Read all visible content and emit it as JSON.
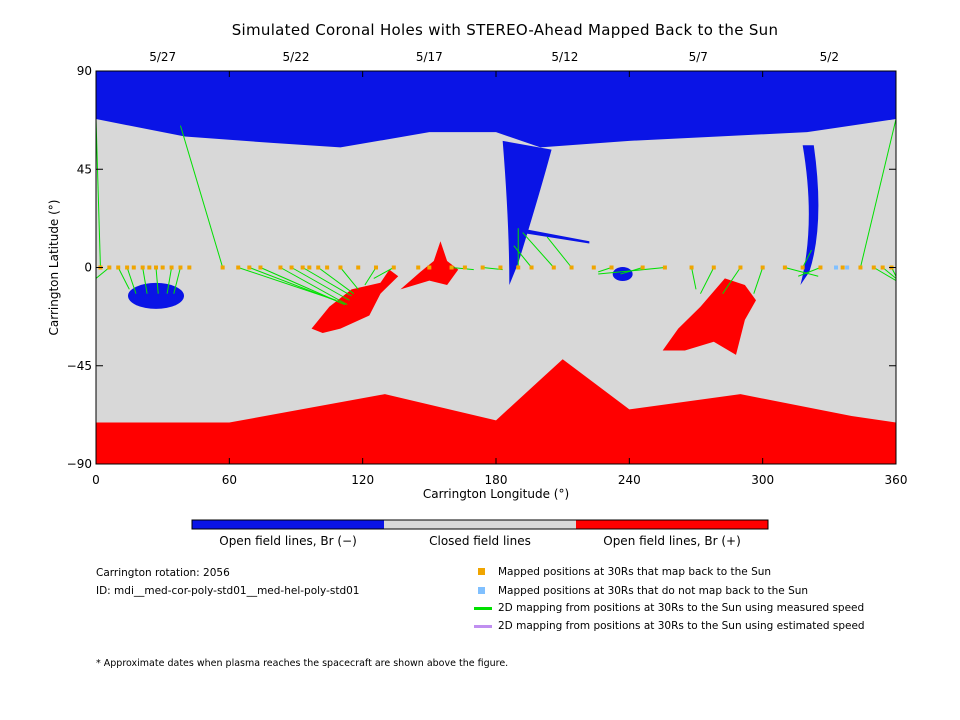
{
  "chart_data": {
    "type": "map",
    "title": "Simulated Coronal Holes with STEREO-Ahead Mapped Back to the Sun",
    "xlabel": "Carrington Longitude (°)",
    "ylabel": "Carrington Latitude (°)",
    "xlim": [
      0,
      360
    ],
    "ylim": [
      -90,
      90
    ],
    "xticks": [
      0,
      60,
      120,
      180,
      240,
      300,
      360
    ],
    "yticks": [
      -90,
      -45,
      0,
      45,
      90
    ],
    "top_dates": [
      {
        "label": "5/27",
        "lon": 30
      },
      {
        "label": "5/22",
        "lon": 90
      },
      {
        "label": "5/17",
        "lon": 150
      },
      {
        "label": "5/12",
        "lon": 211
      },
      {
        "label": "5/7",
        "lon": 271
      },
      {
        "label": "5/2",
        "lon": 330
      }
    ],
    "colors": {
      "open_negative": "#0a14e6",
      "closed": "#d8d8d8",
      "open_positive": "#ff0000",
      "mapped": "#f0a500",
      "unmapped": "#80c0ff",
      "measured": "#00e000",
      "estimated": "#c08ff0"
    },
    "colorbar": [
      "Open field lines, Br (−)",
      "Closed field lines",
      "Open field lines, Br (+)"
    ],
    "regions": {
      "north_polar_negative": {
        "boundary_lat": [
          [
            0,
            68
          ],
          [
            40,
            60
          ],
          [
            80,
            57
          ],
          [
            110,
            55
          ],
          [
            150,
            62
          ],
          [
            180,
            62
          ],
          [
            200,
            55
          ],
          [
            240,
            58
          ],
          [
            280,
            60
          ],
          [
            320,
            62
          ],
          [
            360,
            68
          ]
        ]
      },
      "south_polar_positive": {
        "boundary_lat": [
          [
            0,
            -71
          ],
          [
            60,
            -71
          ],
          [
            130,
            -58
          ],
          [
            180,
            -70
          ],
          [
            210,
            -42
          ],
          [
            240,
            -65
          ],
          [
            290,
            -58
          ],
          [
            340,
            -68
          ],
          [
            360,
            -71
          ]
        ]
      },
      "negative_holes": [
        {
          "lon": 25,
          "lat": -13
        },
        {
          "lon": 186,
          "lat": 50
        },
        {
          "lon": 237,
          "lat": -3
        },
        {
          "lon": 310,
          "lat": 47
        }
      ],
      "positive_holes": [
        {
          "lon": 120,
          "lat": -18
        },
        {
          "lon": 155,
          "lat": 0
        },
        {
          "lon": 288,
          "lat": -20
        }
      ]
    },
    "mapped_points": [
      {
        "lon": 2,
        "lat": 0
      },
      {
        "lon": 6,
        "lat": 0
      },
      {
        "lon": 10,
        "lat": 0
      },
      {
        "lon": 14,
        "lat": 0
      },
      {
        "lon": 17,
        "lat": 0
      },
      {
        "lon": 21,
        "lat": 0
      },
      {
        "lon": 24,
        "lat": 0
      },
      {
        "lon": 27,
        "lat": 0
      },
      {
        "lon": 30,
        "lat": 0
      },
      {
        "lon": 34,
        "lat": 0
      },
      {
        "lon": 38,
        "lat": 0
      },
      {
        "lon": 42,
        "lat": 0
      },
      {
        "lon": 57,
        "lat": 0
      },
      {
        "lon": 64,
        "lat": 0
      },
      {
        "lon": 69,
        "lat": 0
      },
      {
        "lon": 74,
        "lat": 0
      },
      {
        "lon": 83,
        "lat": 0
      },
      {
        "lon": 88,
        "lat": 0
      },
      {
        "lon": 93,
        "lat": 0
      },
      {
        "lon": 96,
        "lat": 0
      },
      {
        "lon": 100,
        "lat": 0
      },
      {
        "lon": 104,
        "lat": 0
      },
      {
        "lon": 110,
        "lat": 0
      },
      {
        "lon": 118,
        "lat": 0
      },
      {
        "lon": 126,
        "lat": 0
      },
      {
        "lon": 134,
        "lat": 0
      },
      {
        "lon": 145,
        "lat": 0
      },
      {
        "lon": 150,
        "lat": 0
      },
      {
        "lon": 160,
        "lat": 0
      },
      {
        "lon": 166,
        "lat": 0
      },
      {
        "lon": 174,
        "lat": 0
      },
      {
        "lon": 182,
        "lat": 0
      },
      {
        "lon": 190,
        "lat": 0
      },
      {
        "lon": 196,
        "lat": 0
      },
      {
        "lon": 206,
        "lat": 0
      },
      {
        "lon": 214,
        "lat": 0
      },
      {
        "lon": 224,
        "lat": 0
      },
      {
        "lon": 232,
        "lat": 0
      },
      {
        "lon": 246,
        "lat": 0
      },
      {
        "lon": 256,
        "lat": 0
      },
      {
        "lon": 268,
        "lat": 0
      },
      {
        "lon": 278,
        "lat": 0
      },
      {
        "lon": 290,
        "lat": 0
      },
      {
        "lon": 300,
        "lat": 0
      },
      {
        "lon": 310,
        "lat": 0
      },
      {
        "lon": 318,
        "lat": 0
      },
      {
        "lon": 326,
        "lat": 0
      },
      {
        "lon": 336,
        "lat": 0
      },
      {
        "lon": 344,
        "lat": 0
      },
      {
        "lon": 350,
        "lat": 0
      },
      {
        "lon": 354,
        "lat": 0
      },
      {
        "lon": 358,
        "lat": 0
      }
    ],
    "unmapped_points": [
      {
        "lon": 333,
        "lat": 0
      },
      {
        "lon": 338,
        "lat": 0
      }
    ],
    "mapping_lines": [
      {
        "from": [
          2,
          0
        ],
        "to": [
          0,
          68
        ]
      },
      {
        "from": [
          6,
          0
        ],
        "to": [
          0,
          -5
        ]
      },
      {
        "from": [
          10,
          0
        ],
        "to": [
          15,
          -10
        ]
      },
      {
        "from": [
          14,
          0
        ],
        "to": [
          18,
          -12
        ]
      },
      {
        "from": [
          21,
          0
        ],
        "to": [
          23,
          -12
        ]
      },
      {
        "from": [
          27,
          0
        ],
        "to": [
          28,
          -12
        ]
      },
      {
        "from": [
          34,
          0
        ],
        "to": [
          32,
          -12
        ]
      },
      {
        "from": [
          38,
          0
        ],
        "to": [
          35,
          -12
        ]
      },
      {
        "from": [
          57,
          0
        ],
        "to": [
          38,
          65
        ]
      },
      {
        "from": [
          64,
          0
        ],
        "to": [
          108,
          -15
        ]
      },
      {
        "from": [
          69,
          0
        ],
        "to": [
          110,
          -16
        ]
      },
      {
        "from": [
          74,
          0
        ],
        "to": [
          112,
          -17
        ]
      },
      {
        "from": [
          83,
          0
        ],
        "to": [
          113,
          -17
        ]
      },
      {
        "from": [
          88,
          0
        ],
        "to": [
          114,
          -15
        ]
      },
      {
        "from": [
          93,
          0
        ],
        "to": [
          115,
          -13
        ]
      },
      {
        "from": [
          100,
          0
        ],
        "to": [
          116,
          -12
        ]
      },
      {
        "from": [
          110,
          0
        ],
        "to": [
          118,
          -10
        ]
      },
      {
        "from": [
          126,
          0
        ],
        "to": [
          121,
          -8
        ]
      },
      {
        "from": [
          134,
          0
        ],
        "to": [
          125,
          -5
        ]
      },
      {
        "from": [
          160,
          0
        ],
        "to": [
          170,
          -1
        ]
      },
      {
        "from": [
          174,
          0
        ],
        "to": [
          183,
          -1
        ]
      },
      {
        "from": [
          190,
          0
        ],
        "to": [
          190,
          18
        ]
      },
      {
        "from": [
          196,
          0
        ],
        "to": [
          188,
          10
        ]
      },
      {
        "from": [
          206,
          0
        ],
        "to": [
          192,
          16
        ]
      },
      {
        "from": [
          214,
          0
        ],
        "to": [
          203,
          14
        ]
      },
      {
        "from": [
          232,
          0
        ],
        "to": [
          226,
          -2
        ]
      },
      {
        "from": [
          246,
          0
        ],
        "to": [
          236,
          -3
        ]
      },
      {
        "from": [
          256,
          0
        ],
        "to": [
          226,
          -3
        ]
      },
      {
        "from": [
          268,
          0
        ],
        "to": [
          270,
          -10
        ]
      },
      {
        "from": [
          278,
          0
        ],
        "to": [
          272,
          -12
        ]
      },
      {
        "from": [
          290,
          0
        ],
        "to": [
          282,
          -12
        ]
      },
      {
        "from": [
          300,
          0
        ],
        "to": [
          296,
          -12
        ]
      },
      {
        "from": [
          310,
          0
        ],
        "to": [
          325,
          -4
        ]
      },
      {
        "from": [
          318,
          0
        ],
        "to": [
          322,
          8
        ]
      },
      {
        "from": [
          326,
          0
        ],
        "to": [
          316,
          -4
        ]
      },
      {
        "from": [
          344,
          0
        ],
        "to": [
          360,
          68
        ]
      },
      {
        "from": [
          350,
          0
        ],
        "to": [
          360,
          -6
        ]
      },
      {
        "from": [
          354,
          0
        ],
        "to": [
          360,
          -5
        ]
      },
      {
        "from": [
          358,
          0
        ],
        "to": [
          360,
          -4
        ]
      }
    ]
  },
  "info": {
    "carrington_rotation": "Carrington rotation: 2056",
    "id": "ID: mdi__med-cor-poly-std01__med-hel-poly-std01"
  },
  "legend": {
    "mapped": "Mapped positions at 30Rs that map back to the Sun",
    "unmapped": "Mapped positions at 30Rs that do not map back to the Sun",
    "measured": "2D mapping from positions at 30Rs to the Sun using measured speed",
    "estimated": "2D mapping from positions at 30Rs to the Sun using estimated speed"
  },
  "footnote": "* Approximate dates when plasma reaches the spacecraft are shown above the figure."
}
